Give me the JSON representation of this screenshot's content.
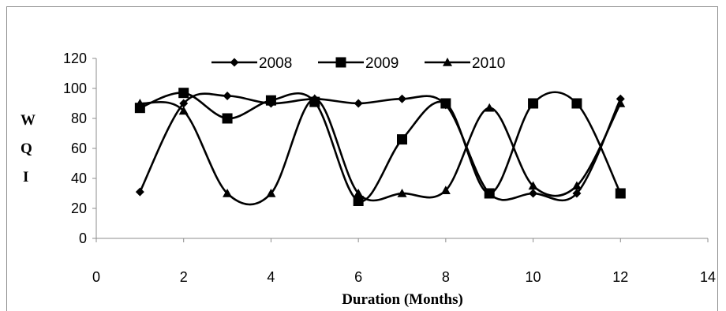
{
  "chart_data": {
    "type": "line",
    "title": "",
    "xlabel": "Duration (Months)",
    "ylabel_letters": [
      "W",
      "Q",
      "I"
    ],
    "xlim": [
      0,
      14
    ],
    "ylim": [
      0,
      120
    ],
    "x_ticks": [
      0,
      2,
      4,
      6,
      8,
      10,
      12,
      14
    ],
    "y_ticks": [
      0,
      20,
      40,
      60,
      80,
      100,
      120
    ],
    "grid": false,
    "legend_position": "top-center",
    "smooth": true,
    "x": [
      1,
      2,
      3,
      4,
      5,
      6,
      7,
      8,
      9,
      10,
      11,
      12
    ],
    "series": [
      {
        "name": "2008",
        "marker": "diamond",
        "color": "#000000",
        "values": [
          31,
          90,
          95,
          90,
          93,
          90,
          93,
          89,
          30,
          30,
          30,
          93
        ]
      },
      {
        "name": "2009",
        "marker": "square",
        "color": "#000000",
        "values": [
          87,
          97,
          80,
          92,
          91,
          25,
          66,
          90,
          30,
          90,
          90,
          30
        ]
      },
      {
        "name": "2010",
        "marker": "triangle",
        "color": "#000000",
        "values": [
          90,
          85,
          30,
          30,
          93,
          30,
          30,
          32,
          87,
          35,
          35,
          90
        ]
      }
    ]
  }
}
